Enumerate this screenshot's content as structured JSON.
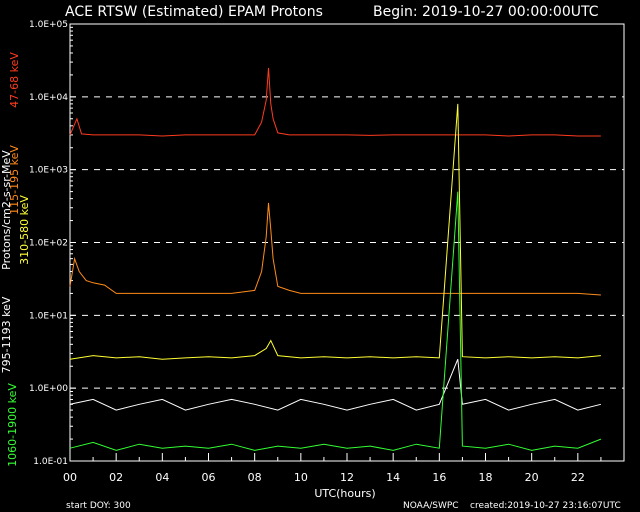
{
  "chart_data": {
    "type": "line",
    "title": "ACE RTSW (Estimated) EPAM Protons",
    "begin_label": "Begin: 2019-10-27 00:00:00UTC",
    "xlabel": "UTC(hours)",
    "ylabel": "Protons/cm2-s-sr-MeV",
    "x_ticks": [
      "00",
      "02",
      "04",
      "06",
      "08",
      "10",
      "12",
      "14",
      "16",
      "18",
      "20",
      "22"
    ],
    "xlim": [
      0,
      24
    ],
    "y_scale": "log",
    "ylim": [
      0.1,
      100000
    ],
    "y_ticks": [
      "1.0E+05",
      "1.0E+04",
      "1.0E+03",
      "1.0E+02",
      "1.0E+01",
      "1.0E+00",
      "1.0E-01"
    ],
    "grid": "dashed horizontal lines at decades",
    "series": [
      {
        "name": "47-68 keV",
        "color": "#ff3b1e",
        "x": [
          0,
          0.3,
          0.5,
          1,
          2,
          3,
          4,
          5,
          6,
          7,
          8,
          8.3,
          8.5,
          8.6,
          8.7,
          8.8,
          9,
          9.5,
          10,
          11,
          12,
          13,
          14,
          15,
          16,
          17,
          18,
          19,
          20,
          21,
          22,
          23
        ],
        "values": [
          3000,
          5000,
          3100,
          3000,
          3000,
          3000,
          2900,
          3000,
          3000,
          3000,
          3000,
          4500,
          9000,
          25000,
          8000,
          5000,
          3200,
          3000,
          3000,
          3000,
          3000,
          2950,
          3000,
          3000,
          3000,
          3000,
          3000,
          2900,
          3000,
          3000,
          2900,
          2900
        ]
      },
      {
        "name": "115-195 keV",
        "color": "#ff8c1a",
        "x": [
          0,
          0.2,
          0.4,
          0.7,
          1,
          1.5,
          2,
          3,
          4,
          5,
          6,
          7,
          8,
          8.3,
          8.5,
          8.6,
          8.7,
          8.8,
          9,
          9.5,
          10,
          11,
          12,
          13,
          14,
          15,
          16,
          17,
          18,
          19,
          20,
          21,
          22,
          23
        ],
        "values": [
          25,
          60,
          40,
          30,
          28,
          26,
          20,
          20,
          20,
          20,
          20,
          20,
          22,
          40,
          120,
          350,
          150,
          60,
          25,
          22,
          20,
          20,
          20,
          20,
          20,
          20,
          20,
          20,
          20,
          20,
          20,
          20,
          20,
          19
        ]
      },
      {
        "name": "310-580 keV",
        "color": "#ffff33",
        "x": [
          0,
          1,
          2,
          3,
          4,
          5,
          6,
          7,
          8,
          8.5,
          8.7,
          9,
          10,
          11,
          12,
          13,
          14,
          15,
          16,
          16.8,
          17,
          18,
          19,
          20,
          21,
          22,
          23
        ],
        "values": [
          2.5,
          2.8,
          2.6,
          2.7,
          2.5,
          2.6,
          2.7,
          2.6,
          2.8,
          3.5,
          4.5,
          2.8,
          2.6,
          2.7,
          2.6,
          2.7,
          2.6,
          2.7,
          2.6,
          8000,
          2.7,
          2.6,
          2.7,
          2.6,
          2.7,
          2.6,
          2.8
        ]
      },
      {
        "name": "795-1193 keV",
        "color": "#ffffff",
        "x": [
          0,
          1,
          2,
          3,
          4,
          5,
          6,
          7,
          8,
          9,
          10,
          11,
          12,
          13,
          14,
          15,
          16,
          16.8,
          17,
          18,
          19,
          20,
          21,
          22,
          23
        ],
        "values": [
          0.6,
          0.7,
          0.5,
          0.6,
          0.7,
          0.5,
          0.6,
          0.7,
          0.6,
          0.5,
          0.7,
          0.6,
          0.5,
          0.6,
          0.7,
          0.5,
          0.6,
          2.5,
          0.6,
          0.7,
          0.5,
          0.6,
          0.7,
          0.5,
          0.6
        ]
      },
      {
        "name": "1060-1900 keV",
        "color": "#33ff33",
        "x": [
          0,
          1,
          2,
          3,
          4,
          5,
          6,
          7,
          8,
          9,
          10,
          11,
          12,
          13,
          14,
          15,
          16,
          16.8,
          17,
          18,
          19,
          20,
          21,
          22,
          23
        ],
        "values": [
          0.15,
          0.18,
          0.14,
          0.17,
          0.15,
          0.16,
          0.15,
          0.17,
          0.14,
          0.16,
          0.15,
          0.17,
          0.15,
          0.16,
          0.14,
          0.17,
          0.15,
          500,
          0.16,
          0.15,
          0.17,
          0.14,
          0.16,
          0.15,
          0.2
        ]
      }
    ]
  },
  "footer": {
    "start_doy": "start DOY:  300",
    "agency": "NOAA/SWPC",
    "created": "created:2019-10-27 23:16:07UTC"
  }
}
